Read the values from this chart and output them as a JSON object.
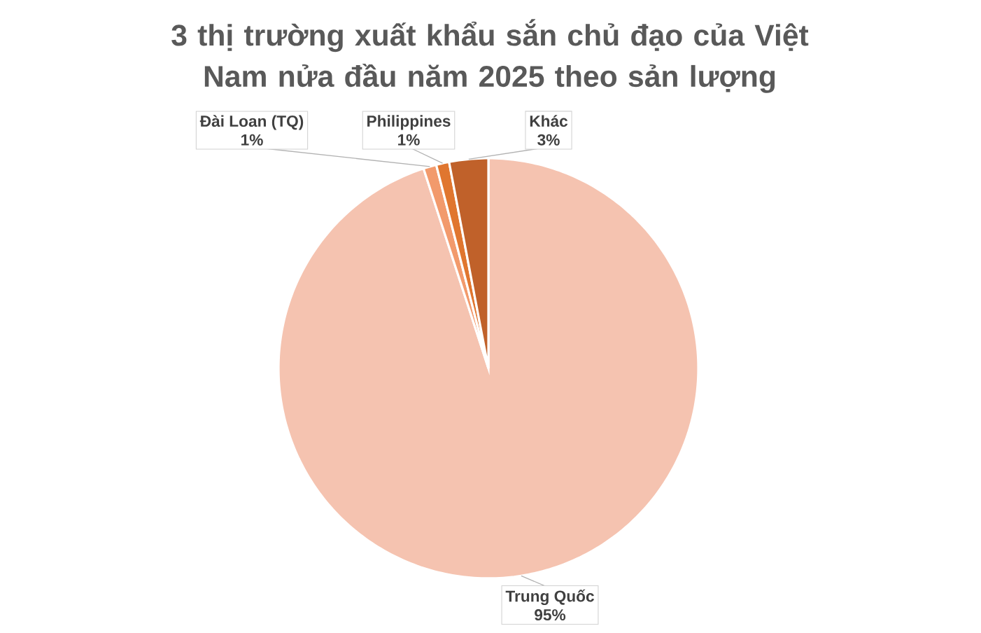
{
  "chart_data": {
    "type": "pie",
    "title": "3 thị trường xuất khẩu sắn chủ đạo của Việt Nam nửa đầu năm 2025 theo sản lượng",
    "categories": [
      "Trung Quốc",
      "Đài Loan (TQ)",
      "Philippines",
      "Khác"
    ],
    "values": [
      95,
      1,
      1,
      3
    ],
    "value_labels": [
      "95%",
      "1%",
      "1%",
      "3%"
    ],
    "colors": [
      "#f5c3b0",
      "#f29a6c",
      "#e0762f",
      "#c0612a"
    ]
  }
}
